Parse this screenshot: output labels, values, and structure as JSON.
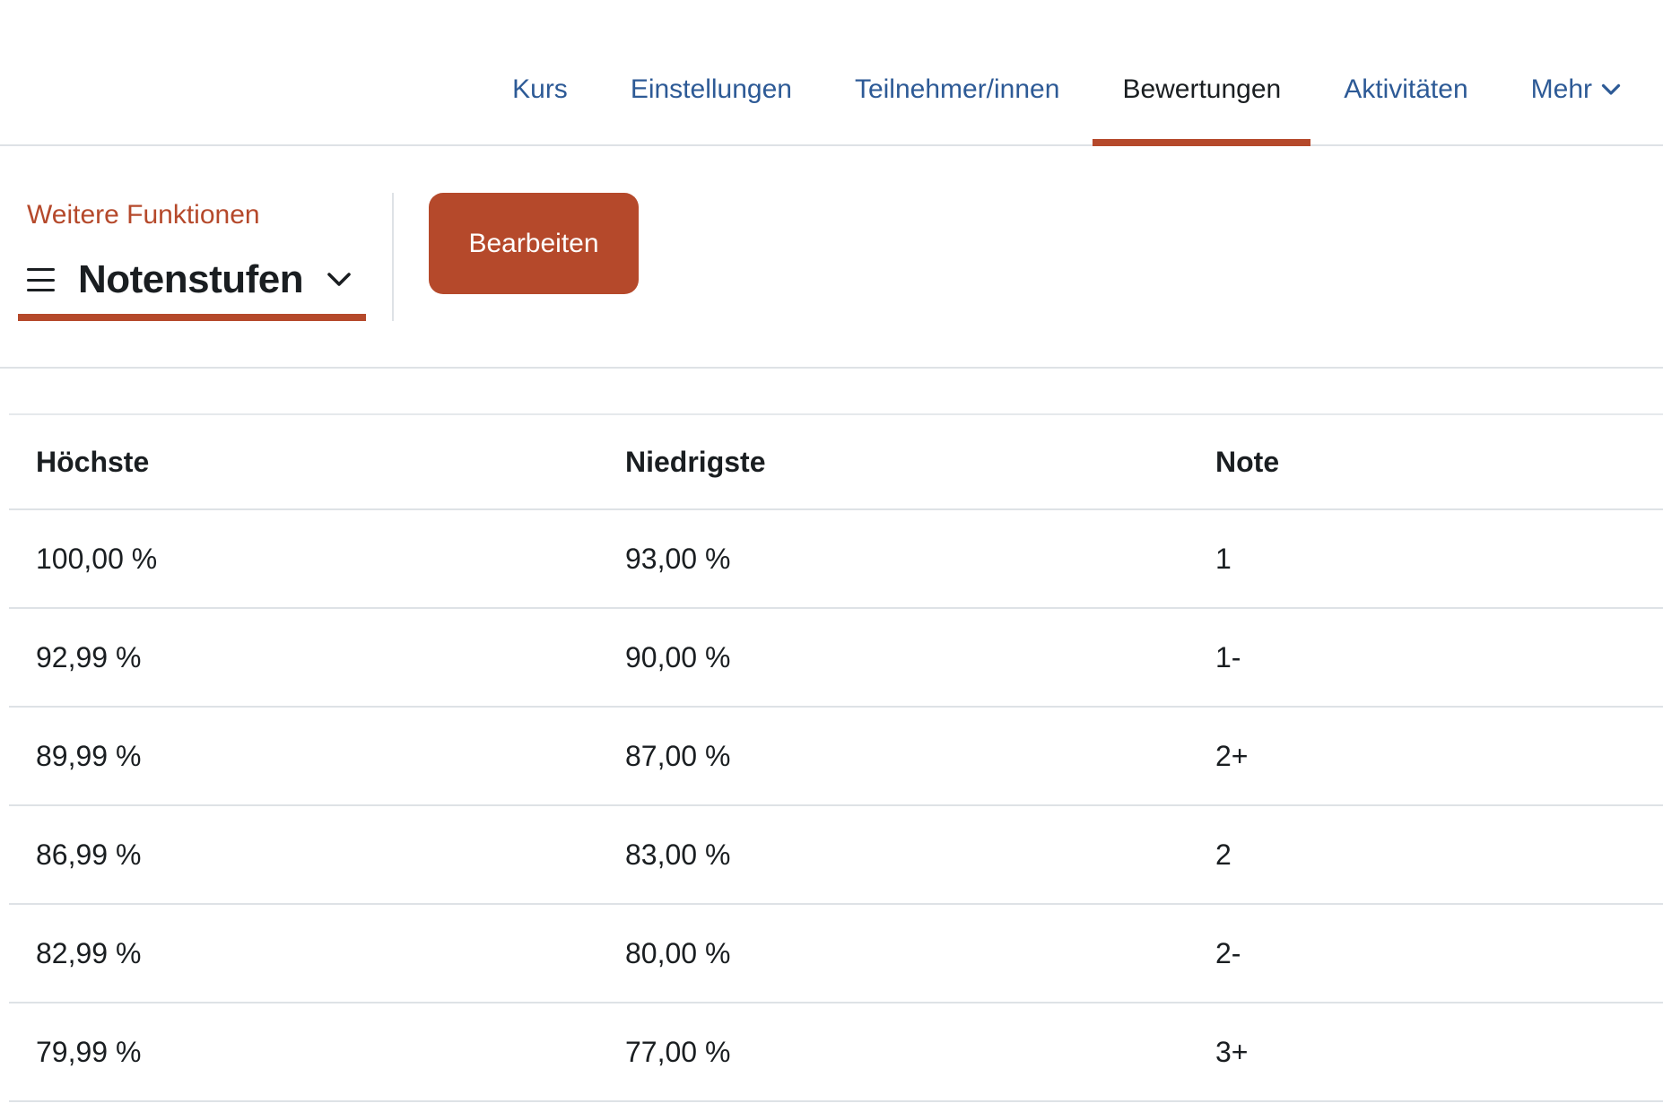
{
  "nav": {
    "tabs": [
      {
        "label": "Kurs",
        "active": false
      },
      {
        "label": "Einstellungen",
        "active": false
      },
      {
        "label": "Teilnehmer/innen",
        "active": false
      },
      {
        "label": "Bewertungen",
        "active": true
      },
      {
        "label": "Aktivitäten",
        "active": false
      },
      {
        "label": "Mehr",
        "active": false,
        "has_chevron": true
      }
    ]
  },
  "tertiary": {
    "more_functions_label": "Weitere Funktionen",
    "dropdown_label": "Notenstufen",
    "edit_button_label": "Bearbeiten"
  },
  "table": {
    "headers": [
      "Höchste",
      "Niedrigste",
      "Note"
    ],
    "rows": [
      [
        "100,00 %",
        "93,00 %",
        "1"
      ],
      [
        "92,99 %",
        "90,00 %",
        "1-"
      ],
      [
        "89,99 %",
        "87,00 %",
        "2+"
      ],
      [
        "86,99 %",
        "83,00 %",
        "2"
      ],
      [
        "82,99 %",
        "80,00 %",
        "2-"
      ],
      [
        "79,99 %",
        "77,00 %",
        "3+"
      ]
    ]
  },
  "icons": {
    "menu": "menu-icon",
    "chevron_down": "chevron-down-icon"
  },
  "colors": {
    "accent_orange": "#b5492b",
    "link_blue": "#2d5a96",
    "text_dark": "#1a1e21",
    "border_gray": "#dee2e6"
  }
}
